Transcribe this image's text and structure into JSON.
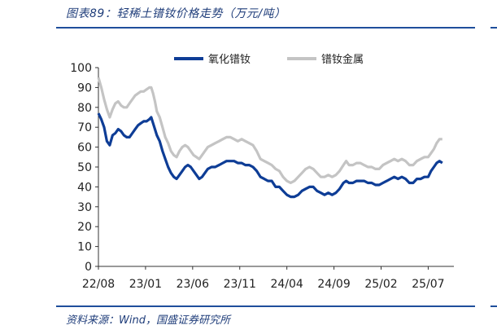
{
  "figure": {
    "title": "图表89：轻稀土镨钕价格走势（万元/吨）",
    "source": "资料来源：Wind，国盛证券研究所"
  },
  "colors": {
    "series_0": "#0e3d96",
    "series_1": "#c4c4c4",
    "rule": "#1f4e9c",
    "text": "#1f3d7a"
  },
  "chart_data": {
    "type": "line",
    "title": "",
    "xlabel": "",
    "ylabel": "",
    "ylim": [
      0,
      100
    ],
    "yticks": [
      0,
      10,
      20,
      30,
      40,
      50,
      60,
      70,
      80,
      90,
      100
    ],
    "xlim": [
      0,
      36
    ],
    "xticks": [
      {
        "label": "22/08",
        "x": 0
      },
      {
        "label": "23/01",
        "x": 5
      },
      {
        "label": "23/06",
        "x": 10
      },
      {
        "label": "23/11",
        "x": 15
      },
      {
        "label": "24/04",
        "x": 20
      },
      {
        "label": "24/09",
        "x": 25
      },
      {
        "label": "25/02",
        "x": 30
      },
      {
        "label": "25/07",
        "x": 35
      }
    ],
    "grid": false,
    "legend_position": "top-center",
    "series": [
      {
        "name": "氧化镨钕",
        "points": [
          [
            0,
            77
          ],
          [
            0.3,
            74
          ],
          [
            0.6,
            70
          ],
          [
            0.9,
            63
          ],
          [
            1.2,
            61
          ],
          [
            1.5,
            66
          ],
          [
            1.8,
            67
          ],
          [
            2.1,
            69
          ],
          [
            2.4,
            68
          ],
          [
            2.7,
            66
          ],
          [
            3,
            65
          ],
          [
            3.3,
            65
          ],
          [
            3.6,
            67
          ],
          [
            3.9,
            69
          ],
          [
            4.2,
            71
          ],
          [
            4.5,
            72
          ],
          [
            4.8,
            73
          ],
          [
            5.1,
            73
          ],
          [
            5.4,
            74
          ],
          [
            5.6,
            75
          ],
          [
            5.8,
            72
          ],
          [
            6,
            69
          ],
          [
            6.2,
            66
          ],
          [
            6.5,
            63
          ],
          [
            6.8,
            58
          ],
          [
            7.1,
            54
          ],
          [
            7.4,
            50
          ],
          [
            7.7,
            47
          ],
          [
            8,
            45
          ],
          [
            8.3,
            44
          ],
          [
            8.6,
            46
          ],
          [
            8.9,
            48
          ],
          [
            9.2,
            50
          ],
          [
            9.5,
            51
          ],
          [
            9.8,
            50
          ],
          [
            10.1,
            48
          ],
          [
            10.4,
            46
          ],
          [
            10.7,
            44
          ],
          [
            11,
            45
          ],
          [
            11.3,
            47
          ],
          [
            11.6,
            49
          ],
          [
            12,
            50
          ],
          [
            12.4,
            50
          ],
          [
            12.8,
            51
          ],
          [
            13.2,
            52
          ],
          [
            13.6,
            53
          ],
          [
            14,
            53
          ],
          [
            14.4,
            53
          ],
          [
            14.8,
            52
          ],
          [
            15.2,
            52
          ],
          [
            15.6,
            51
          ],
          [
            16,
            51
          ],
          [
            16.4,
            50
          ],
          [
            16.8,
            48
          ],
          [
            17.2,
            45
          ],
          [
            17.6,
            44
          ],
          [
            18,
            43
          ],
          [
            18.4,
            43
          ],
          [
            18.8,
            40
          ],
          [
            19.2,
            40
          ],
          [
            19.6,
            38
          ],
          [
            20,
            36
          ],
          [
            20.4,
            35
          ],
          [
            20.8,
            35
          ],
          [
            21.2,
            36
          ],
          [
            21.6,
            38
          ],
          [
            22,
            39
          ],
          [
            22.4,
            40
          ],
          [
            22.8,
            40
          ],
          [
            23.2,
            38
          ],
          [
            23.6,
            37
          ],
          [
            24,
            36
          ],
          [
            24.4,
            37
          ],
          [
            24.8,
            36
          ],
          [
            25.2,
            37
          ],
          [
            25.6,
            39
          ],
          [
            26,
            42
          ],
          [
            26.3,
            43
          ],
          [
            26.6,
            42
          ],
          [
            27,
            42
          ],
          [
            27.4,
            43
          ],
          [
            27.8,
            43
          ],
          [
            28.2,
            43
          ],
          [
            28.6,
            42
          ],
          [
            29,
            42
          ],
          [
            29.4,
            41
          ],
          [
            29.8,
            41
          ],
          [
            30.2,
            42
          ],
          [
            30.6,
            43
          ],
          [
            31,
            44
          ],
          [
            31.4,
            45
          ],
          [
            31.8,
            44
          ],
          [
            32.2,
            45
          ],
          [
            32.6,
            44
          ],
          [
            33,
            42
          ],
          [
            33.4,
            42
          ],
          [
            33.8,
            44
          ],
          [
            34.2,
            44
          ],
          [
            34.6,
            45
          ],
          [
            35,
            45
          ],
          [
            35.3,
            48
          ],
          [
            35.6,
            50
          ],
          [
            35.9,
            52
          ],
          [
            36.2,
            53
          ],
          [
            36.5,
            52
          ]
        ]
      },
      {
        "name": "镨钕金属",
        "points": [
          [
            0,
            95
          ],
          [
            0.3,
            90
          ],
          [
            0.6,
            84
          ],
          [
            0.9,
            79
          ],
          [
            1.2,
            75
          ],
          [
            1.5,
            79
          ],
          [
            1.8,
            82
          ],
          [
            2.1,
            83
          ],
          [
            2.4,
            81
          ],
          [
            2.7,
            80
          ],
          [
            3,
            80
          ],
          [
            3.3,
            82
          ],
          [
            3.6,
            84
          ],
          [
            3.9,
            86
          ],
          [
            4.2,
            87
          ],
          [
            4.5,
            88
          ],
          [
            4.8,
            88
          ],
          [
            5.1,
            89
          ],
          [
            5.4,
            90
          ],
          [
            5.6,
            90
          ],
          [
            5.8,
            87
          ],
          [
            6,
            83
          ],
          [
            6.2,
            78
          ],
          [
            6.5,
            75
          ],
          [
            6.8,
            70
          ],
          [
            7.1,
            65
          ],
          [
            7.4,
            62
          ],
          [
            7.7,
            58
          ],
          [
            8,
            56
          ],
          [
            8.3,
            55
          ],
          [
            8.6,
            58
          ],
          [
            8.9,
            60
          ],
          [
            9.2,
            61
          ],
          [
            9.5,
            60
          ],
          [
            9.8,
            58
          ],
          [
            10.1,
            56
          ],
          [
            10.4,
            55
          ],
          [
            10.7,
            54
          ],
          [
            11,
            56
          ],
          [
            11.3,
            58
          ],
          [
            11.6,
            60
          ],
          [
            12,
            61
          ],
          [
            12.4,
            62
          ],
          [
            12.8,
            63
          ],
          [
            13.2,
            64
          ],
          [
            13.6,
            65
          ],
          [
            14,
            65
          ],
          [
            14.4,
            64
          ],
          [
            14.8,
            63
          ],
          [
            15.2,
            64
          ],
          [
            15.6,
            63
          ],
          [
            16,
            62
          ],
          [
            16.4,
            61
          ],
          [
            16.8,
            58
          ],
          [
            17.2,
            54
          ],
          [
            17.6,
            53
          ],
          [
            18,
            52
          ],
          [
            18.4,
            51
          ],
          [
            18.8,
            49
          ],
          [
            19.2,
            48
          ],
          [
            19.6,
            45
          ],
          [
            20,
            43
          ],
          [
            20.4,
            42
          ],
          [
            20.8,
            43
          ],
          [
            21.2,
            45
          ],
          [
            21.6,
            47
          ],
          [
            22,
            49
          ],
          [
            22.4,
            50
          ],
          [
            22.8,
            49
          ],
          [
            23.2,
            47
          ],
          [
            23.6,
            45
          ],
          [
            24,
            45
          ],
          [
            24.4,
            46
          ],
          [
            24.8,
            45
          ],
          [
            25.2,
            46
          ],
          [
            25.6,
            48
          ],
          [
            26,
            51
          ],
          [
            26.3,
            53
          ],
          [
            26.6,
            51
          ],
          [
            27,
            51
          ],
          [
            27.4,
            52
          ],
          [
            27.8,
            52
          ],
          [
            28.2,
            51
          ],
          [
            28.6,
            50
          ],
          [
            29,
            50
          ],
          [
            29.4,
            49
          ],
          [
            29.8,
            49
          ],
          [
            30.2,
            51
          ],
          [
            30.6,
            52
          ],
          [
            31,
            53
          ],
          [
            31.4,
            54
          ],
          [
            31.8,
            53
          ],
          [
            32.2,
            54
          ],
          [
            32.6,
            53
          ],
          [
            33,
            51
          ],
          [
            33.4,
            51
          ],
          [
            33.8,
            53
          ],
          [
            34.2,
            54
          ],
          [
            34.6,
            55
          ],
          [
            35,
            55
          ],
          [
            35.3,
            57
          ],
          [
            35.6,
            59
          ],
          [
            35.9,
            62
          ],
          [
            36.2,
            64
          ],
          [
            36.5,
            64
          ]
        ]
      }
    ]
  }
}
